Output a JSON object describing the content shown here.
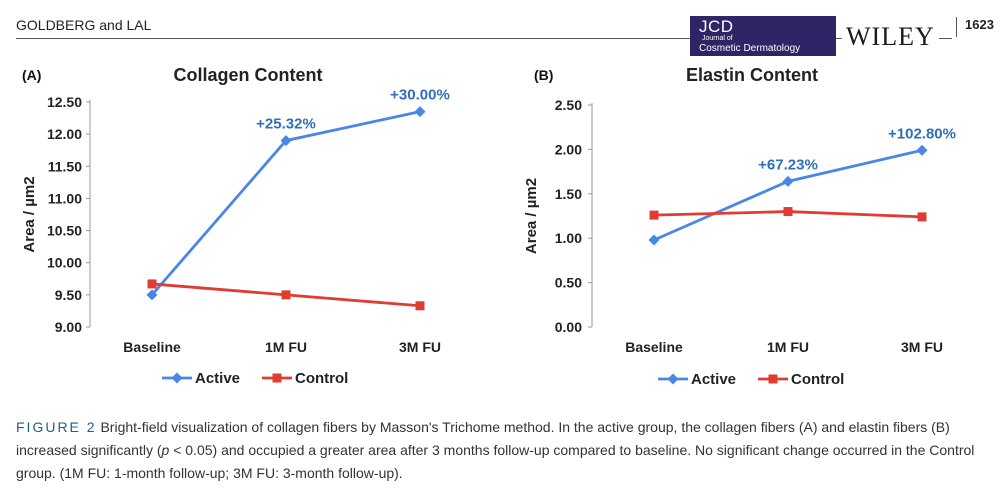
{
  "header": {
    "authors": "GOLDBERG and LAL",
    "journal_abbrev": "JCD",
    "journal_of": "Journal of",
    "journal_name": "Cosmetic Dermatology",
    "publisher": "WILEY",
    "page_number": "1623"
  },
  "chart_data": [
    {
      "type": "line",
      "panel_label": "(A)",
      "title": "Collagen Content",
      "ylabel": "Area / µm2",
      "xlabel": "",
      "categories": [
        "Baseline",
        "1M FU",
        "3M FU"
      ],
      "ylim": [
        9.0,
        12.5
      ],
      "yticks": [
        "9.00",
        "9.50",
        "10.00",
        "10.50",
        "11.00",
        "11.50",
        "12.00",
        "12.50"
      ],
      "grid": false,
      "legend": "bottom",
      "series": [
        {
          "name": "Active",
          "color": "#4a86e8",
          "marker": "diamond",
          "values": [
            9.5,
            11.9,
            12.35
          ]
        },
        {
          "name": "Control",
          "color": "#e03c31",
          "marker": "square",
          "values": [
            9.67,
            9.5,
            9.33
          ]
        }
      ],
      "annotations": [
        {
          "text": "+25.32%",
          "category": "1M FU",
          "y": 11.9
        },
        {
          "text": "+30.00%",
          "category": "3M FU",
          "y": 12.35
        }
      ]
    },
    {
      "type": "line",
      "panel_label": "(B)",
      "title": "Elastin Content",
      "ylabel": "Area / µm2",
      "xlabel": "",
      "categories": [
        "Baseline",
        "1M FU",
        "3M FU"
      ],
      "ylim": [
        0.0,
        2.5
      ],
      "yticks": [
        "0.00",
        "0.50",
        "1.00",
        "1.50",
        "2.00",
        "2.50"
      ],
      "grid": false,
      "legend": "bottom",
      "series": [
        {
          "name": "Active",
          "color": "#4a86e8",
          "marker": "diamond",
          "values": [
            0.98,
            1.64,
            1.99
          ]
        },
        {
          "name": "Control",
          "color": "#e03c31",
          "marker": "square",
          "values": [
            1.26,
            1.3,
            1.24
          ]
        }
      ],
      "annotations": [
        {
          "text": "+67.23%",
          "category": "1M FU",
          "y": 1.64
        },
        {
          "text": "+102.80%",
          "category": "3M FU",
          "y": 1.99
        }
      ]
    }
  ],
  "caption": {
    "label": "FIGURE 2",
    "text_1": "Bright-field visualization of collagen fibers by Masson's Trichome method. In the active group, the collagen fibers (A) and elastin fibers (B) increased significantly (",
    "p_italic": "p",
    "text_2": " < 0.05) and occupied a greater area after 3 months follow-up compared to baseline. No significant change occurred in the Control group. (1M FU: 1-month follow-up; 3M FU: 3-month follow-up)."
  }
}
